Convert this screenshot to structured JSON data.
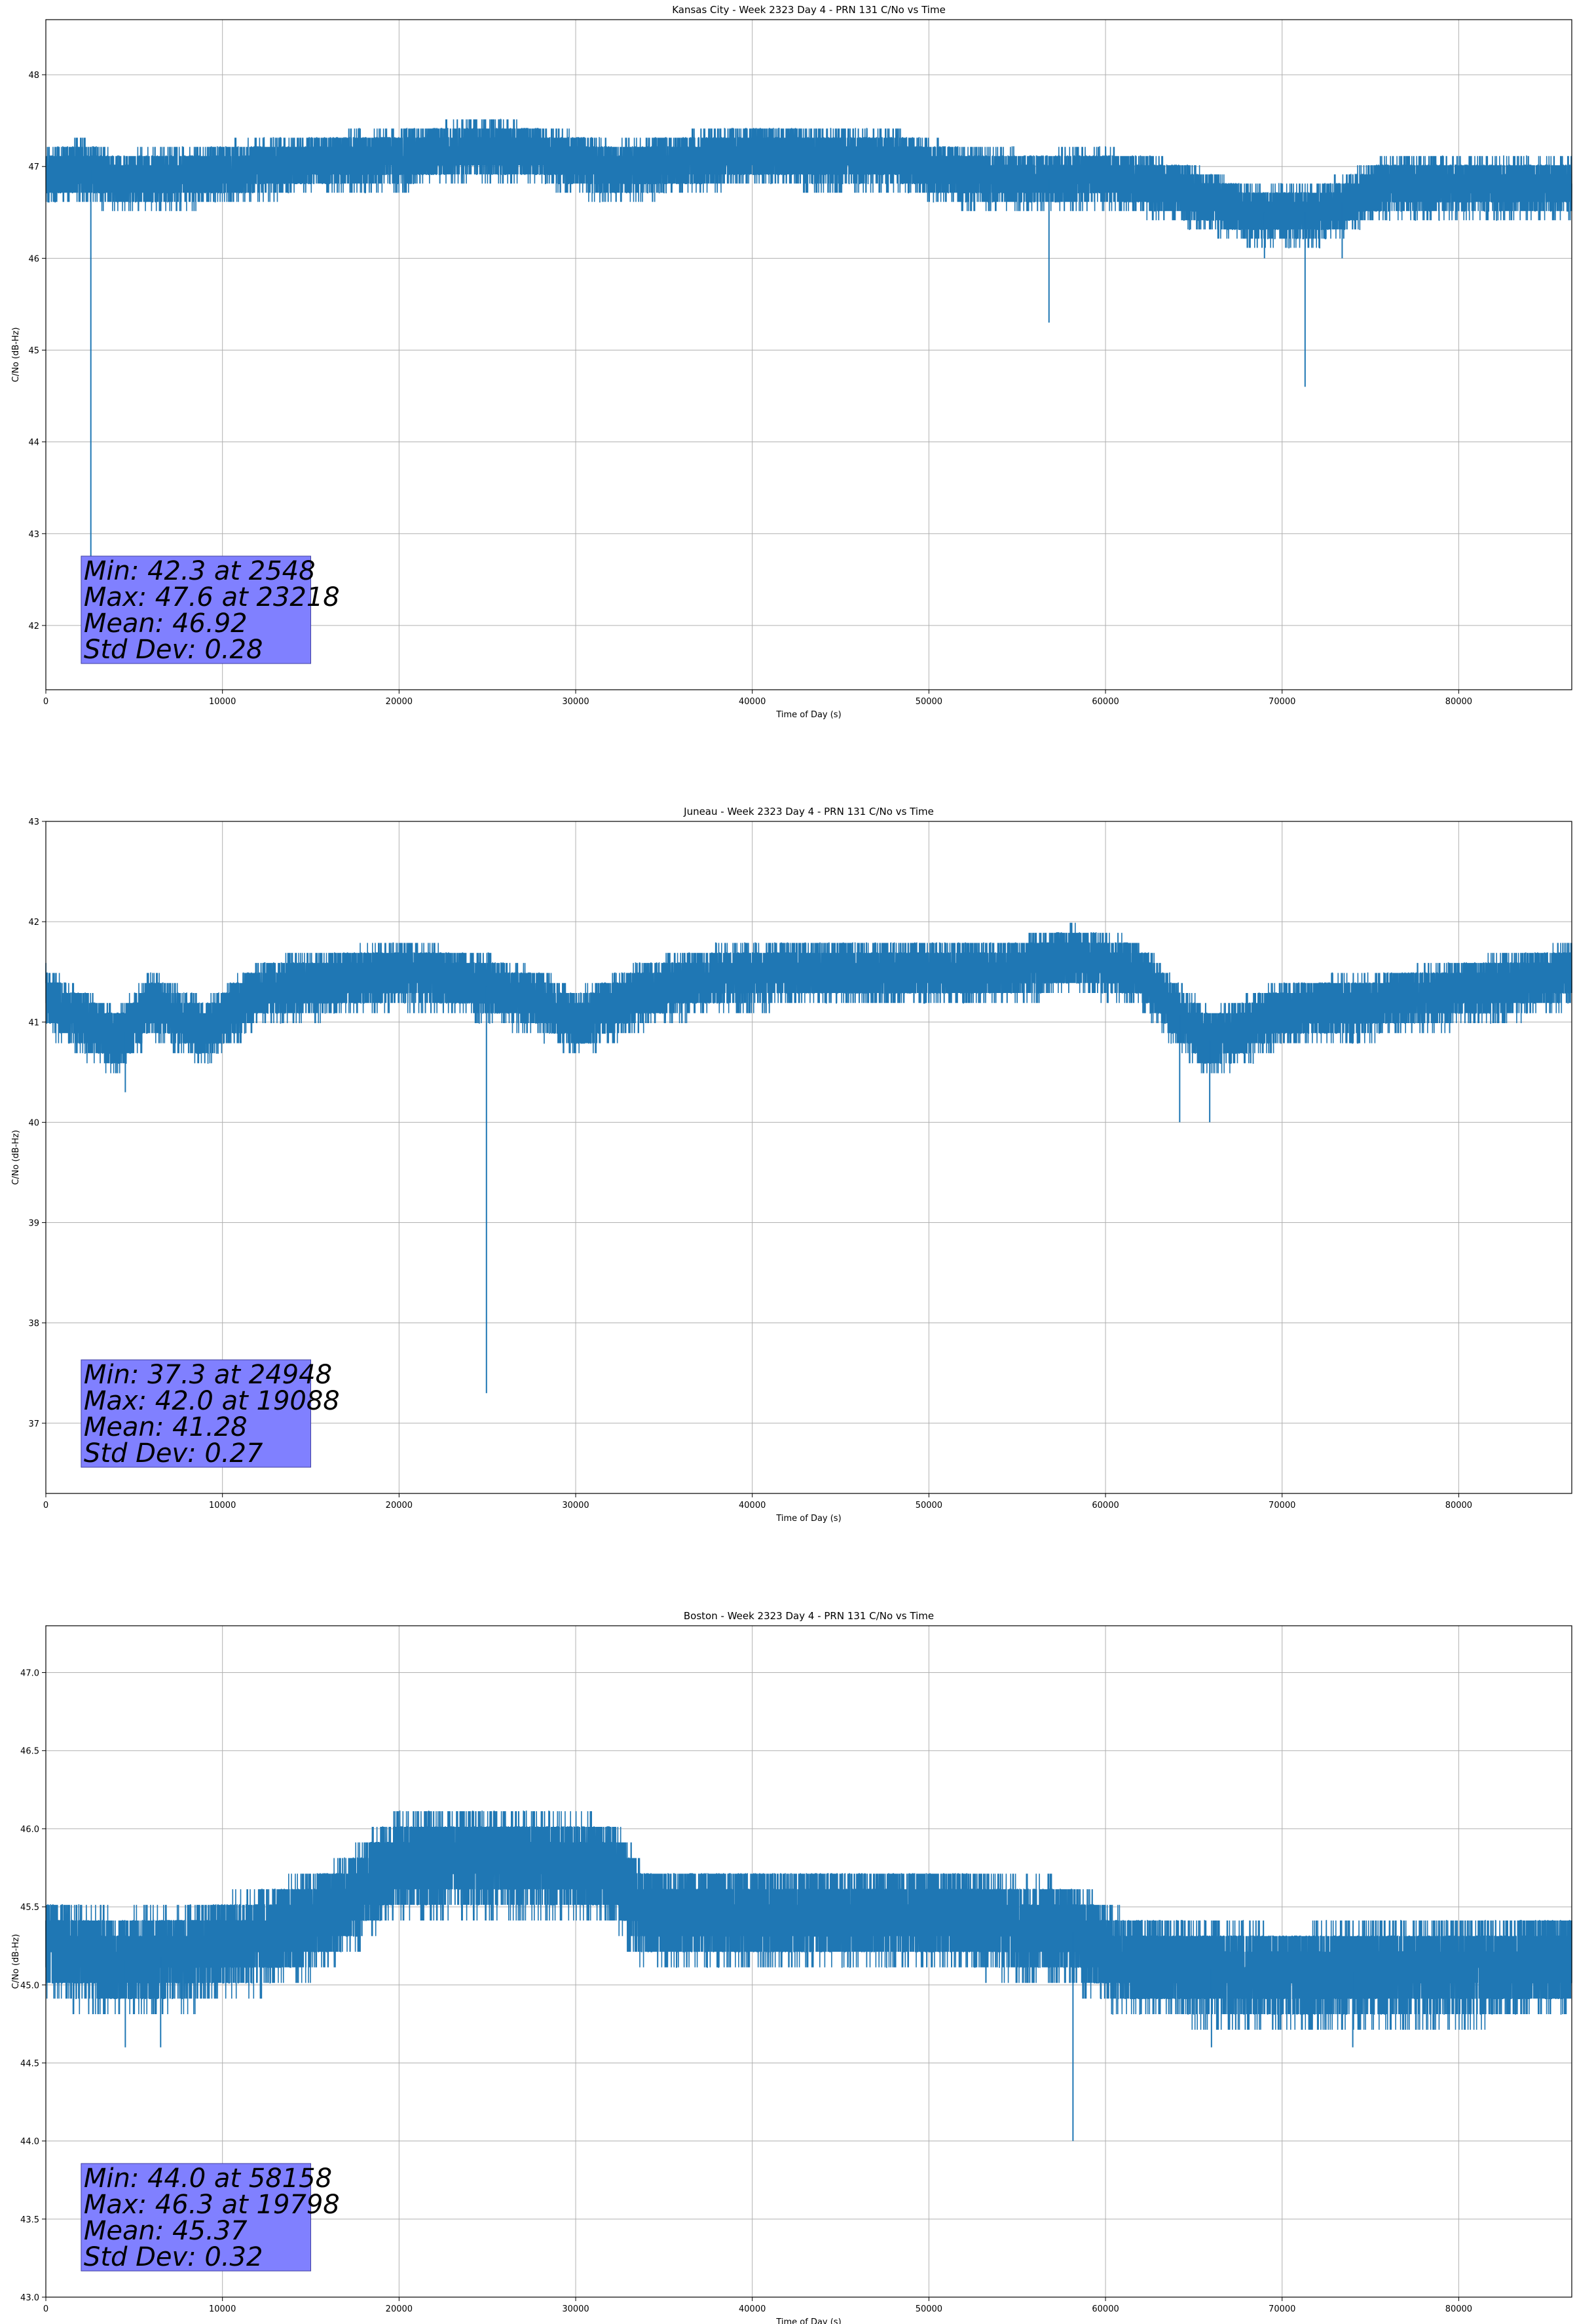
{
  "chart_data": [
    {
      "type": "line",
      "title": "Kansas City - Week 2323 Day 4 - PRN 131 C/No vs Time",
      "xlabel": "Time of Day (s)",
      "ylabel": "C/No (dB-Hz)",
      "xlim": [
        0,
        86400
      ],
      "ylim": [
        41.3,
        48.6
      ],
      "xticks": [
        0,
        10000,
        20000,
        30000,
        40000,
        50000,
        60000,
        70000,
        80000
      ],
      "yticks": [
        42,
        43,
        44,
        45,
        46,
        47,
        48
      ],
      "grid": true,
      "color": "#1f77b4",
      "series_profile": [
        {
          "x": 0,
          "y": 46.9
        },
        {
          "x": 2000,
          "y": 47.0
        },
        {
          "x": 4000,
          "y": 46.85
        },
        {
          "x": 8000,
          "y": 46.9
        },
        {
          "x": 12000,
          "y": 47.0
        },
        {
          "x": 16000,
          "y": 47.05
        },
        {
          "x": 20000,
          "y": 47.1
        },
        {
          "x": 24000,
          "y": 47.2
        },
        {
          "x": 28000,
          "y": 47.15
        },
        {
          "x": 32000,
          "y": 46.95
        },
        {
          "x": 36000,
          "y": 47.05
        },
        {
          "x": 40000,
          "y": 47.15
        },
        {
          "x": 44000,
          "y": 47.1
        },
        {
          "x": 48000,
          "y": 47.1
        },
        {
          "x": 52000,
          "y": 46.9
        },
        {
          "x": 56000,
          "y": 46.85
        },
        {
          "x": 60000,
          "y": 46.9
        },
        {
          "x": 64000,
          "y": 46.75
        },
        {
          "x": 68000,
          "y": 46.5
        },
        {
          "x": 72000,
          "y": 46.5
        },
        {
          "x": 76000,
          "y": 46.8
        },
        {
          "x": 80000,
          "y": 46.8
        },
        {
          "x": 86400,
          "y": 46.8
        }
      ],
      "spikes": [
        {
          "x": 2548,
          "y": 42.3
        },
        {
          "x": 56800,
          "y": 45.3
        },
        {
          "x": 71300,
          "y": 44.6
        },
        {
          "x": 69000,
          "y": 46.0
        },
        {
          "x": 73400,
          "y": 46.0
        }
      ],
      "min": {
        "value": 42.3,
        "time": 2548
      },
      "max": {
        "value": 47.6,
        "time": 23218
      },
      "mean": 46.92,
      "std": 0.28,
      "stats_text": [
        "Min: 42.3 at 2548",
        "Max: 47.6 at 23218",
        "Mean: 46.92",
        "Std Dev: 0.28"
      ]
    },
    {
      "type": "line",
      "title": "Juneau - Week 2323 Day 4 - PRN 131 C/No vs Time",
      "xlabel": "Time of Day (s)",
      "ylabel": "C/No (dB-Hz)",
      "xlim": [
        0,
        86400
      ],
      "ylim": [
        36.3,
        43.0
      ],
      "xticks": [
        0,
        10000,
        20000,
        30000,
        40000,
        50000,
        60000,
        70000,
        80000
      ],
      "yticks": [
        37,
        38,
        39,
        40,
        41,
        42,
        43
      ],
      "grid": true,
      "color": "#1f77b4",
      "series_profile": [
        {
          "x": 0,
          "y": 41.25
        },
        {
          "x": 4000,
          "y": 40.8
        },
        {
          "x": 6000,
          "y": 41.2
        },
        {
          "x": 9000,
          "y": 40.9
        },
        {
          "x": 12000,
          "y": 41.3
        },
        {
          "x": 16000,
          "y": 41.4
        },
        {
          "x": 20000,
          "y": 41.5
        },
        {
          "x": 24000,
          "y": 41.4
        },
        {
          "x": 28000,
          "y": 41.2
        },
        {
          "x": 30000,
          "y": 41.0
        },
        {
          "x": 34000,
          "y": 41.3
        },
        {
          "x": 38000,
          "y": 41.45
        },
        {
          "x": 42000,
          "y": 41.5
        },
        {
          "x": 46000,
          "y": 41.5
        },
        {
          "x": 50000,
          "y": 41.5
        },
        {
          "x": 54000,
          "y": 41.5
        },
        {
          "x": 58000,
          "y": 41.65
        },
        {
          "x": 62000,
          "y": 41.5
        },
        {
          "x": 64000,
          "y": 41.1
        },
        {
          "x": 66000,
          "y": 40.8
        },
        {
          "x": 70000,
          "y": 41.1
        },
        {
          "x": 76000,
          "y": 41.2
        },
        {
          "x": 80000,
          "y": 41.3
        },
        {
          "x": 84000,
          "y": 41.4
        },
        {
          "x": 86400,
          "y": 41.5
        }
      ],
      "spikes": [
        {
          "x": 24948,
          "y": 37.3
        },
        {
          "x": 64200,
          "y": 40.0
        },
        {
          "x": 65900,
          "y": 40.0
        },
        {
          "x": 4500,
          "y": 40.3
        }
      ],
      "min": {
        "value": 37.3,
        "time": 24948
      },
      "max": {
        "value": 42.0,
        "time": 19088
      },
      "mean": 41.28,
      "std": 0.27,
      "stats_text": [
        "Min: 37.3 at 24948",
        "Max: 42.0 at 19088",
        "Mean: 41.28",
        "Std Dev: 0.27"
      ]
    },
    {
      "type": "line",
      "title": "Boston - Week 2323 Day 4 - PRN 131 C/No vs Time",
      "xlabel": "Time of Day (s)",
      "ylabel": "C/No (dB-Hz)",
      "xlim": [
        0,
        86400
      ],
      "ylim": [
        43.0,
        47.3
      ],
      "xticks": [
        0,
        10000,
        20000,
        30000,
        40000,
        50000,
        60000,
        70000,
        80000
      ],
      "yticks": [
        43.0,
        43.5,
        44.0,
        44.5,
        45.0,
        45.5,
        46.0,
        46.5,
        47.0
      ],
      "grid": true,
      "color": "#1f77b4",
      "series_profile": [
        {
          "x": 0,
          "y": 45.25
        },
        {
          "x": 4000,
          "y": 45.15
        },
        {
          "x": 8000,
          "y": 45.2
        },
        {
          "x": 12000,
          "y": 45.3
        },
        {
          "x": 16000,
          "y": 45.45
        },
        {
          "x": 20000,
          "y": 45.8
        },
        {
          "x": 24000,
          "y": 45.8
        },
        {
          "x": 28000,
          "y": 45.8
        },
        {
          "x": 32000,
          "y": 45.75
        },
        {
          "x": 34000,
          "y": 45.45
        },
        {
          "x": 38000,
          "y": 45.45
        },
        {
          "x": 42000,
          "y": 45.45
        },
        {
          "x": 46000,
          "y": 45.45
        },
        {
          "x": 50000,
          "y": 45.45
        },
        {
          "x": 54000,
          "y": 45.4
        },
        {
          "x": 58000,
          "y": 45.35
        },
        {
          "x": 61000,
          "y": 45.15
        },
        {
          "x": 66000,
          "y": 45.1
        },
        {
          "x": 70000,
          "y": 45.05
        },
        {
          "x": 76000,
          "y": 45.1
        },
        {
          "x": 80000,
          "y": 45.1
        },
        {
          "x": 86400,
          "y": 45.15
        }
      ],
      "spikes": [
        {
          "x": 58158,
          "y": 44.0
        },
        {
          "x": 4500,
          "y": 44.6
        },
        {
          "x": 6500,
          "y": 44.6
        },
        {
          "x": 66000,
          "y": 44.6
        },
        {
          "x": 74000,
          "y": 44.6
        }
      ],
      "min": {
        "value": 44.0,
        "time": 58158
      },
      "max": {
        "value": 46.3,
        "time": 19798
      },
      "mean": 45.37,
      "std": 0.32,
      "stats_text": [
        "Min: 44.0 at 58158",
        "Max: 46.3 at 19798",
        "Mean: 45.37",
        "Std Dev: 0.32"
      ]
    }
  ]
}
